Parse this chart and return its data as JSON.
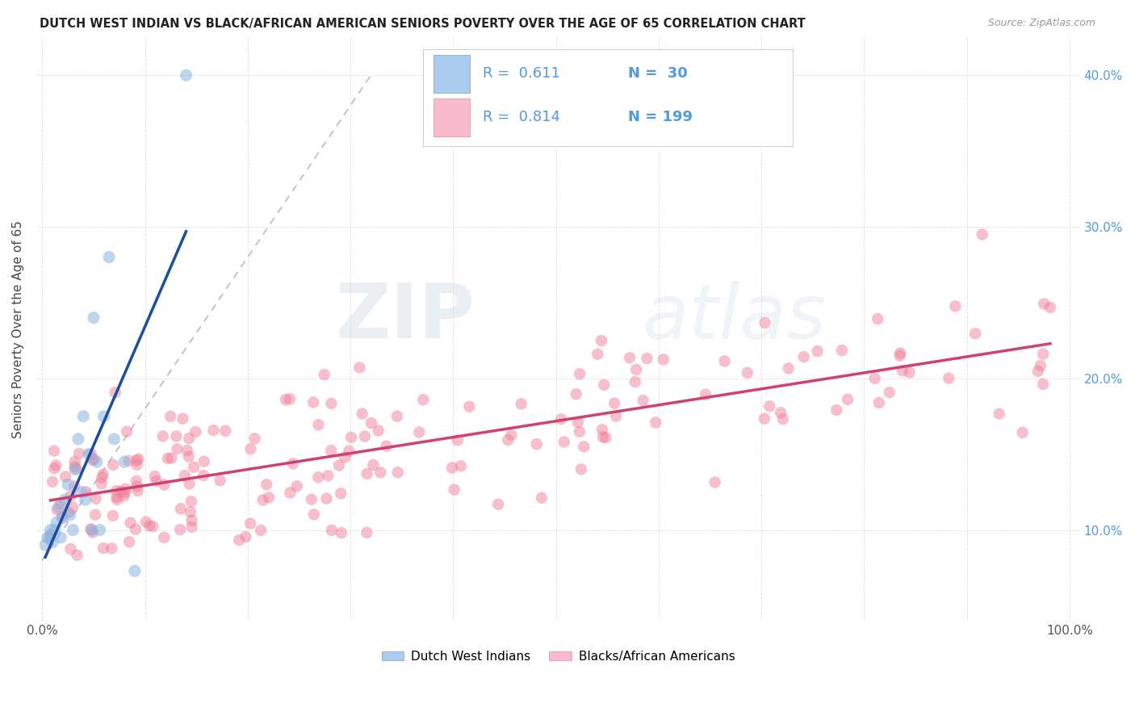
{
  "title": "DUTCH WEST INDIAN VS BLACK/AFRICAN AMERICAN SENIORS POVERTY OVER THE AGE OF 65 CORRELATION CHART",
  "source": "Source: ZipAtlas.com",
  "ylabel": "Seniors Poverty Over the Age of 65",
  "watermark_zip": "ZIP",
  "watermark_atlas": "atlas",
  "legend_blue_r": "0.611",
  "legend_blue_n": "30",
  "legend_pink_r": "0.814",
  "legend_pink_n": "199",
  "blue_color": "#89B4E0",
  "pink_color": "#F08098",
  "blue_line_color": "#1A4EA0",
  "pink_line_color": "#D04070",
  "dashed_color": "#AAAACC",
  "grid_color": "#DDDDDD",
  "bg_color": "#FFFFFF",
  "right_tick_color": "#5599DD",
  "title_color": "#222222",
  "source_color": "#999999",
  "ylabel_color": "#444444"
}
